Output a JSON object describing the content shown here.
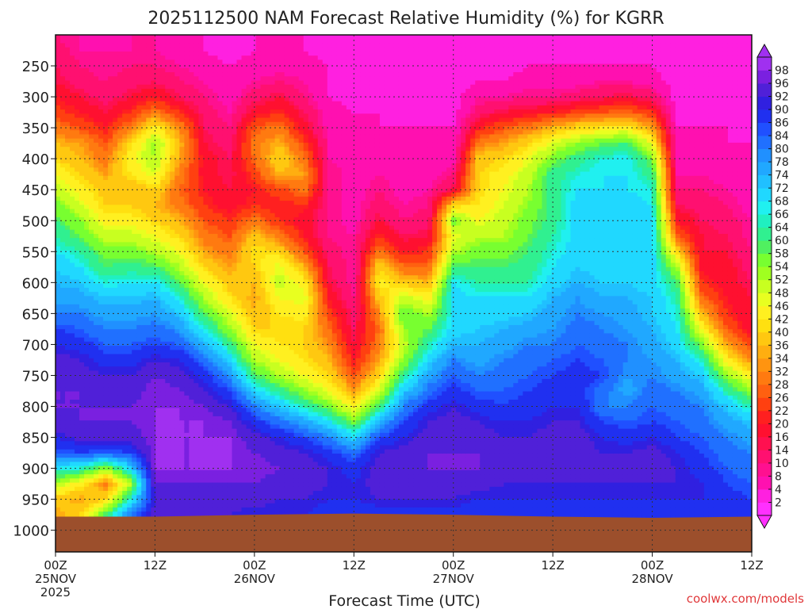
{
  "credit": "coolwx.com/models",
  "chart_data": {
    "type": "heatmap",
    "title": "2025112500 NAM Forecast Relative Humidity (%) for KGRR",
    "xlabel": "Forecast Time (UTC)",
    "ylabel": "",
    "x": {
      "unit": "forecast hour",
      "range": [
        0,
        84
      ],
      "ticks": [
        {
          "hour": 0,
          "label": "00Z",
          "date": "25NOV",
          "year": "2025"
        },
        {
          "hour": 12,
          "label": "12Z"
        },
        {
          "hour": 24,
          "label": "00Z",
          "date": "26NOV"
        },
        {
          "hour": 36,
          "label": "12Z"
        },
        {
          "hour": 48,
          "label": "00Z",
          "date": "27NOV"
        },
        {
          "hour": 60,
          "label": "12Z"
        },
        {
          "hour": 72,
          "label": "00Z",
          "date": "28NOV"
        },
        {
          "hour": 84,
          "label": "12Z"
        }
      ]
    },
    "y": {
      "unit": "hPa",
      "range": [
        1035,
        200
      ],
      "ticks": [
        250,
        300,
        350,
        400,
        450,
        500,
        550,
        600,
        650,
        700,
        750,
        800,
        850,
        900,
        950,
        1000
      ]
    },
    "colorbar": {
      "levels": [
        2,
        4,
        8,
        10,
        14,
        16,
        20,
        22,
        26,
        28,
        32,
        34,
        36,
        40,
        42,
        46,
        48,
        52,
        54,
        58,
        60,
        64,
        66,
        68,
        72,
        74,
        78,
        80,
        84,
        86,
        90,
        92,
        96,
        98
      ],
      "colors": [
        "#ff30ff",
        "#ff20e0",
        "#ff10b0",
        "#ff1090",
        "#ff1070",
        "#ff1050",
        "#ff1030",
        "#ff2020",
        "#ff4010",
        "#ff6010",
        "#ff7a10",
        "#ff9410",
        "#ffae10",
        "#ffc810",
        "#ffe010",
        "#fff020",
        "#e8ff20",
        "#c8ff20",
        "#a0ff20",
        "#78ff30",
        "#50f060",
        "#30f090",
        "#20f0c0",
        "#20f0f0",
        "#20d8ff",
        "#20c0ff",
        "#20a8ff",
        "#2090ff",
        "#2070ff",
        "#2050ff",
        "#2030f0",
        "#3020e0",
        "#5020d8",
        "#7a20e0",
        "#a030f0"
      ]
    },
    "ground_color": "#9c4f2c",
    "time_axis": [
      0,
      3,
      6,
      9,
      12,
      15,
      18,
      21,
      24,
      27,
      30,
      33,
      36,
      39,
      42,
      45,
      48,
      51,
      54,
      57,
      60,
      63,
      66,
      69,
      72,
      75,
      78,
      81,
      84
    ],
    "levels_hpa": [
      975,
      950,
      925,
      900,
      875,
      850,
      825,
      800,
      775,
      750,
      725,
      700,
      675,
      650,
      625,
      600,
      575,
      550,
      525,
      500,
      475,
      450,
      425,
      400,
      375,
      350,
      325,
      300,
      275,
      250,
      225,
      200
    ],
    "values": [
      [
        34,
        38,
        52,
        68,
        84,
        90,
        94,
        96,
        96,
        96,
        94,
        90,
        86,
        80,
        76,
        74,
        72,
        68,
        64,
        60,
        56,
        50,
        46,
        40,
        36,
        30,
        24,
        20,
        16,
        14,
        12,
        10
      ],
      [
        40,
        34,
        44,
        66,
        86,
        94,
        96,
        96,
        96,
        94,
        92,
        88,
        84,
        80,
        76,
        72,
        68,
        64,
        58,
        54,
        48,
        44,
        40,
        36,
        34,
        26,
        20,
        16,
        12,
        10,
        8,
        8
      ],
      [
        60,
        40,
        30,
        54,
        84,
        94,
        96,
        96,
        94,
        92,
        88,
        84,
        80,
        76,
        72,
        66,
        60,
        56,
        50,
        44,
        40,
        38,
        34,
        30,
        26,
        20,
        16,
        12,
        10,
        8,
        8,
        6
      ],
      [
        80,
        66,
        50,
        70,
        86,
        94,
        96,
        96,
        94,
        92,
        88,
        84,
        80,
        76,
        72,
        68,
        62,
        56,
        50,
        44,
        40,
        36,
        42,
        44,
        40,
        30,
        22,
        16,
        12,
        10,
        8,
        8
      ],
      [
        94,
        92,
        96,
        98,
        98,
        98,
        98,
        98,
        98,
        96,
        92,
        86,
        82,
        78,
        74,
        68,
        60,
        52,
        46,
        40,
        36,
        40,
        48,
        52,
        54,
        44,
        30,
        20,
        14,
        10,
        8,
        8
      ],
      [
        94,
        94,
        96,
        98,
        98,
        98,
        98,
        98,
        96,
        94,
        90,
        84,
        78,
        72,
        66,
        58,
        52,
        46,
        40,
        36,
        30,
        28,
        30,
        34,
        36,
        32,
        22,
        14,
        10,
        8,
        6,
        6
      ],
      [
        92,
        94,
        96,
        98,
        98,
        98,
        98,
        96,
        92,
        88,
        82,
        74,
        66,
        58,
        52,
        46,
        40,
        34,
        30,
        26,
        22,
        20,
        18,
        18,
        16,
        14,
        12,
        10,
        8,
        6,
        4,
        4
      ],
      [
        92,
        94,
        96,
        98,
        98,
        98,
        96,
        92,
        86,
        78,
        70,
        62,
        54,
        48,
        42,
        38,
        34,
        30,
        26,
        22,
        18,
        16,
        14,
        14,
        12,
        10,
        8,
        6,
        4,
        4,
        2,
        2
      ],
      [
        90,
        94,
        96,
        98,
        96,
        94,
        88,
        80,
        70,
        60,
        52,
        46,
        40,
        36,
        34,
        36,
        40,
        42,
        38,
        30,
        22,
        20,
        24,
        28,
        30,
        26,
        18,
        12,
        8,
        6,
        4,
        4
      ],
      [
        90,
        92,
        94,
        96,
        94,
        90,
        82,
        72,
        62,
        52,
        46,
        42,
        40,
        42,
        46,
        50,
        48,
        40,
        30,
        22,
        20,
        24,
        36,
        40,
        36,
        30,
        22,
        16,
        10,
        6,
        4,
        4
      ],
      [
        90,
        92,
        94,
        94,
        92,
        86,
        76,
        64,
        54,
        46,
        42,
        40,
        40,
        44,
        48,
        44,
        36,
        26,
        20,
        18,
        22,
        30,
        34,
        30,
        24,
        18,
        14,
        10,
        8,
        6,
        4,
        4
      ],
      [
        88,
        90,
        92,
        92,
        88,
        80,
        68,
        56,
        46,
        40,
        36,
        32,
        28,
        24,
        20,
        16,
        14,
        12,
        10,
        10,
        10,
        10,
        10,
        8,
        8,
        6,
        6,
        4,
        4,
        4,
        2,
        2
      ],
      [
        86,
        90,
        90,
        88,
        82,
        70,
        56,
        44,
        34,
        26,
        20,
        16,
        14,
        12,
        10,
        8,
        8,
        8,
        8,
        6,
        6,
        6,
        6,
        6,
        4,
        4,
        4,
        2,
        2,
        2,
        2,
        2
      ],
      [
        88,
        92,
        94,
        94,
        92,
        86,
        74,
        60,
        48,
        40,
        34,
        30,
        28,
        32,
        38,
        44,
        40,
        30,
        22,
        16,
        12,
        10,
        8,
        6,
        6,
        4,
        4,
        2,
        2,
        2,
        2,
        2
      ],
      [
        88,
        92,
        94,
        96,
        94,
        90,
        86,
        80,
        72,
        62,
        54,
        50,
        54,
        58,
        50,
        38,
        28,
        20,
        14,
        10,
        8,
        6,
        6,
        4,
        4,
        4,
        2,
        2,
        2,
        2,
        2,
        2
      ],
      [
        88,
        92,
        94,
        96,
        96,
        94,
        92,
        88,
        82,
        76,
        70,
        64,
        58,
        52,
        44,
        36,
        28,
        22,
        16,
        12,
        10,
        8,
        6,
        6,
        4,
        4,
        2,
        2,
        2,
        2,
        2,
        2
      ],
      [
        88,
        92,
        94,
        96,
        96,
        96,
        94,
        92,
        88,
        84,
        80,
        74,
        70,
        68,
        70,
        68,
        60,
        52,
        46,
        56,
        40,
        16,
        10,
        6,
        4,
        4,
        2,
        2,
        2,
        2,
        2,
        2
      ],
      [
        86,
        90,
        94,
        96,
        96,
        94,
        92,
        88,
        84,
        80,
        76,
        74,
        72,
        70,
        68,
        64,
        60,
        56,
        52,
        46,
        42,
        40,
        40,
        38,
        30,
        20,
        12,
        8,
        4,
        4,
        2,
        2
      ],
      [
        86,
        90,
        92,
        94,
        94,
        92,
        90,
        86,
        84,
        82,
        80,
        76,
        74,
        70,
        68,
        64,
        60,
        56,
        52,
        50,
        48,
        46,
        44,
        40,
        34,
        26,
        16,
        8,
        4,
        2,
        2,
        2
      ],
      [
        88,
        90,
        92,
        94,
        94,
        92,
        90,
        88,
        86,
        84,
        82,
        80,
        76,
        72,
        68,
        64,
        62,
        60,
        58,
        56,
        54,
        52,
        50,
        46,
        40,
        30,
        18,
        10,
        6,
        4,
        2,
        2
      ],
      [
        88,
        90,
        92,
        94,
        94,
        94,
        92,
        90,
        88,
        86,
        84,
        80,
        78,
        76,
        74,
        70,
        68,
        66,
        64,
        62,
        62,
        62,
        62,
        56,
        48,
        36,
        20,
        10,
        6,
        4,
        2,
        2
      ],
      [
        88,
        90,
        92,
        94,
        94,
        94,
        92,
        90,
        88,
        88,
        86,
        84,
        82,
        80,
        78,
        74,
        72,
        70,
        70,
        70,
        70,
        68,
        66,
        62,
        54,
        40,
        24,
        12,
        6,
        4,
        2,
        2
      ],
      [
        88,
        90,
        92,
        94,
        92,
        90,
        86,
        80,
        82,
        86,
        84,
        82,
        80,
        78,
        74,
        72,
        70,
        70,
        68,
        68,
        68,
        68,
        68,
        66,
        58,
        42,
        26,
        14,
        8,
        4,
        2,
        2
      ],
      [
        88,
        90,
        92,
        94,
        92,
        88,
        84,
        80,
        76,
        78,
        80,
        80,
        78,
        76,
        74,
        72,
        70,
        70,
        70,
        70,
        70,
        68,
        68,
        68,
        60,
        44,
        28,
        16,
        8,
        4,
        2,
        2
      ],
      [
        88,
        90,
        92,
        94,
        94,
        90,
        86,
        84,
        82,
        80,
        78,
        76,
        74,
        72,
        72,
        70,
        70,
        70,
        70,
        70,
        68,
        66,
        62,
        56,
        46,
        34,
        22,
        12,
        6,
        4,
        2,
        2
      ],
      [
        88,
        90,
        92,
        92,
        90,
        86,
        84,
        82,
        80,
        76,
        74,
        70,
        68,
        66,
        64,
        60,
        52,
        40,
        28,
        20,
        14,
        10,
        8,
        6,
        4,
        4,
        2,
        2,
        2,
        2,
        2,
        2
      ],
      [
        88,
        90,
        90,
        88,
        86,
        84,
        82,
        80,
        76,
        72,
        64,
        56,
        46,
        36,
        28,
        22,
        18,
        16,
        16,
        14,
        12,
        10,
        8,
        6,
        4,
        4,
        2,
        2,
        2,
        2,
        2,
        2
      ],
      [
        88,
        88,
        86,
        84,
        82,
        80,
        76,
        72,
        64,
        54,
        44,
        34,
        26,
        22,
        20,
        18,
        18,
        16,
        14,
        12,
        10,
        8,
        6,
        6,
        4,
        4,
        2,
        2,
        2,
        2,
        2,
        2
      ],
      [
        88,
        86,
        84,
        82,
        80,
        76,
        72,
        64,
        54,
        44,
        32,
        24,
        18,
        16,
        16,
        14,
        12,
        10,
        8,
        8,
        6,
        6,
        4,
        4,
        4,
        2,
        2,
        2,
        2,
        2,
        2,
        2
      ]
    ]
  }
}
